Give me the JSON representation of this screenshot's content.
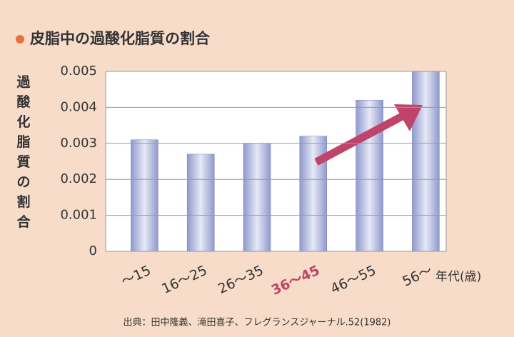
{
  "chart_data": {
    "type": "bar",
    "title": "皮脂中の過酸化脂質の割合",
    "y_label": "過酸化脂質の割合",
    "x_label": "年代(歳)",
    "source": "出典：田中隆義、滝田喜子、フレグランスジャーナル.52(1982)",
    "categories": [
      "〜15",
      "16〜25",
      "26〜35",
      "36〜45",
      "46〜55",
      "56〜"
    ],
    "values": [
      0.0031,
      0.0027,
      0.003,
      0.0032,
      0.0042,
      0.005
    ],
    "color": "#8f99cc",
    "highlight_index": 3,
    "highlight_color": "#c0436a",
    "ylim": [
      0,
      0.005
    ],
    "yticks": [
      0,
      0.001,
      0.002,
      0.003,
      0.004,
      0.005
    ],
    "grid": true
  }
}
